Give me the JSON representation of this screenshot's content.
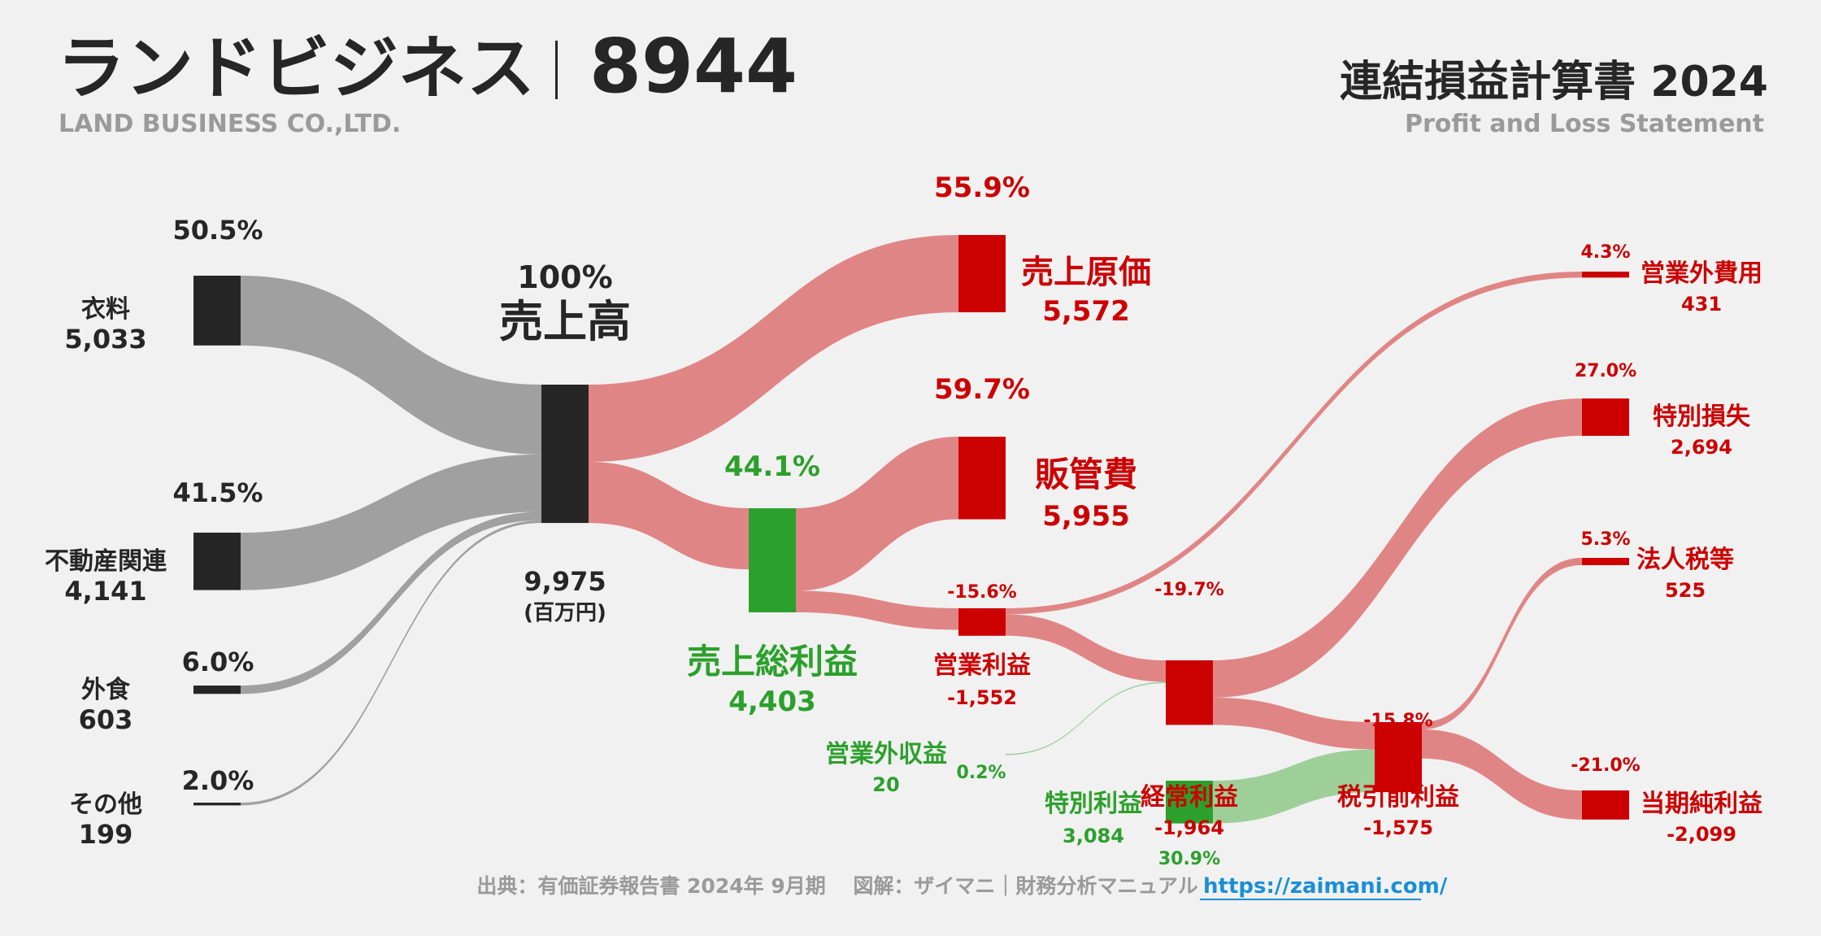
{
  "header": {
    "company_jp": "ランドビジネス",
    "ticker": "8944",
    "company_en": "LAND BUSINESS CO.,LTD.",
    "statement_jp": "連結損益計算書 2024",
    "statement_en": "Profit and Loss Statement"
  },
  "footer": {
    "source": "出典：有価証券報告書 2024年 9月期　 図解：ザイマニ｜財務分析マニュアル",
    "url": "https://zaimani.com/"
  },
  "colors": {
    "dark": "#262626",
    "red": "#cc0000",
    "green": "#2ca02c",
    "gray_flow": "#a0a0a0",
    "red_flow": "#e08585",
    "green_flow": "#9ecf99"
  },
  "chart_data": {
    "type": "sankey",
    "title": "連結損益計算書 2024",
    "unit": "百万円",
    "unit_label": "(百万円)",
    "nodes": {
      "seg_clothing": {
        "name": "衣料",
        "value": "5,033",
        "pct": "50.5%"
      },
      "seg_realestate": {
        "name": "不動産関連",
        "value": "4,141",
        "pct": "41.5%"
      },
      "seg_food": {
        "name": "外食",
        "value": "603",
        "pct": "6.0%"
      },
      "seg_other": {
        "name": "その他",
        "value": "199",
        "pct": "2.0%"
      },
      "revenue": {
        "name": "売上高",
        "value": "9,975",
        "pct": "100%"
      },
      "cogs": {
        "name": "売上原価",
        "value": "5,572",
        "pct": "55.9%"
      },
      "gross_profit": {
        "name": "売上総利益",
        "value": "4,403",
        "pct": "44.1%"
      },
      "sga": {
        "name": "販管費",
        "value": "5,955",
        "pct": "59.7%"
      },
      "operating": {
        "name": "営業利益",
        "value": "-1,552",
        "pct": "-15.6%"
      },
      "nonop_income": {
        "name": "営業外収益",
        "value": "20",
        "pct": "0.2%"
      },
      "nonop_expense": {
        "name": "営業外費用",
        "value": "431",
        "pct": "4.3%"
      },
      "ordinary": {
        "name": "経常利益",
        "value": "-1,964",
        "pct": "-19.7%"
      },
      "special_gain": {
        "name": "特別利益",
        "value": "3,084",
        "pct": "30.9%"
      },
      "special_loss": {
        "name": "特別損失",
        "value": "2,694",
        "pct": "27.0%"
      },
      "pretax": {
        "name": "税引前利益",
        "value": "-1,575",
        "pct": "-15.8%"
      },
      "tax": {
        "name": "法人税等",
        "value": "525",
        "pct": "5.3%"
      },
      "net": {
        "name": "当期純利益",
        "value": "-2,099",
        "pct": "-21.0%"
      }
    },
    "links": [
      {
        "from": "seg_clothing",
        "to": "revenue",
        "value": 5033
      },
      {
        "from": "seg_realestate",
        "to": "revenue",
        "value": 4141
      },
      {
        "from": "seg_food",
        "to": "revenue",
        "value": 603
      },
      {
        "from": "seg_other",
        "to": "revenue",
        "value": 199
      },
      {
        "from": "revenue",
        "to": "cogs",
        "value": 5572
      },
      {
        "from": "revenue",
        "to": "gross_profit",
        "value": 4403
      },
      {
        "from": "gross_profit",
        "to": "sga",
        "value": 5955
      },
      {
        "from": "gross_profit",
        "to": "operating",
        "value": 1552
      },
      {
        "from": "operating",
        "to": "nonop_expense",
        "value": 431
      },
      {
        "from": "operating",
        "to": "ordinary",
        "value": 1552
      },
      {
        "from": "nonop_income",
        "to": "ordinary",
        "value": 20
      },
      {
        "from": "ordinary",
        "to": "special_loss",
        "value": 2694
      },
      {
        "from": "ordinary",
        "to": "pretax",
        "value": 1964
      },
      {
        "from": "special_gain",
        "to": "pretax",
        "value": 3084
      },
      {
        "from": "pretax",
        "to": "tax",
        "value": 525
      },
      {
        "from": "pretax",
        "to": "net",
        "value": 2099
      }
    ]
  }
}
